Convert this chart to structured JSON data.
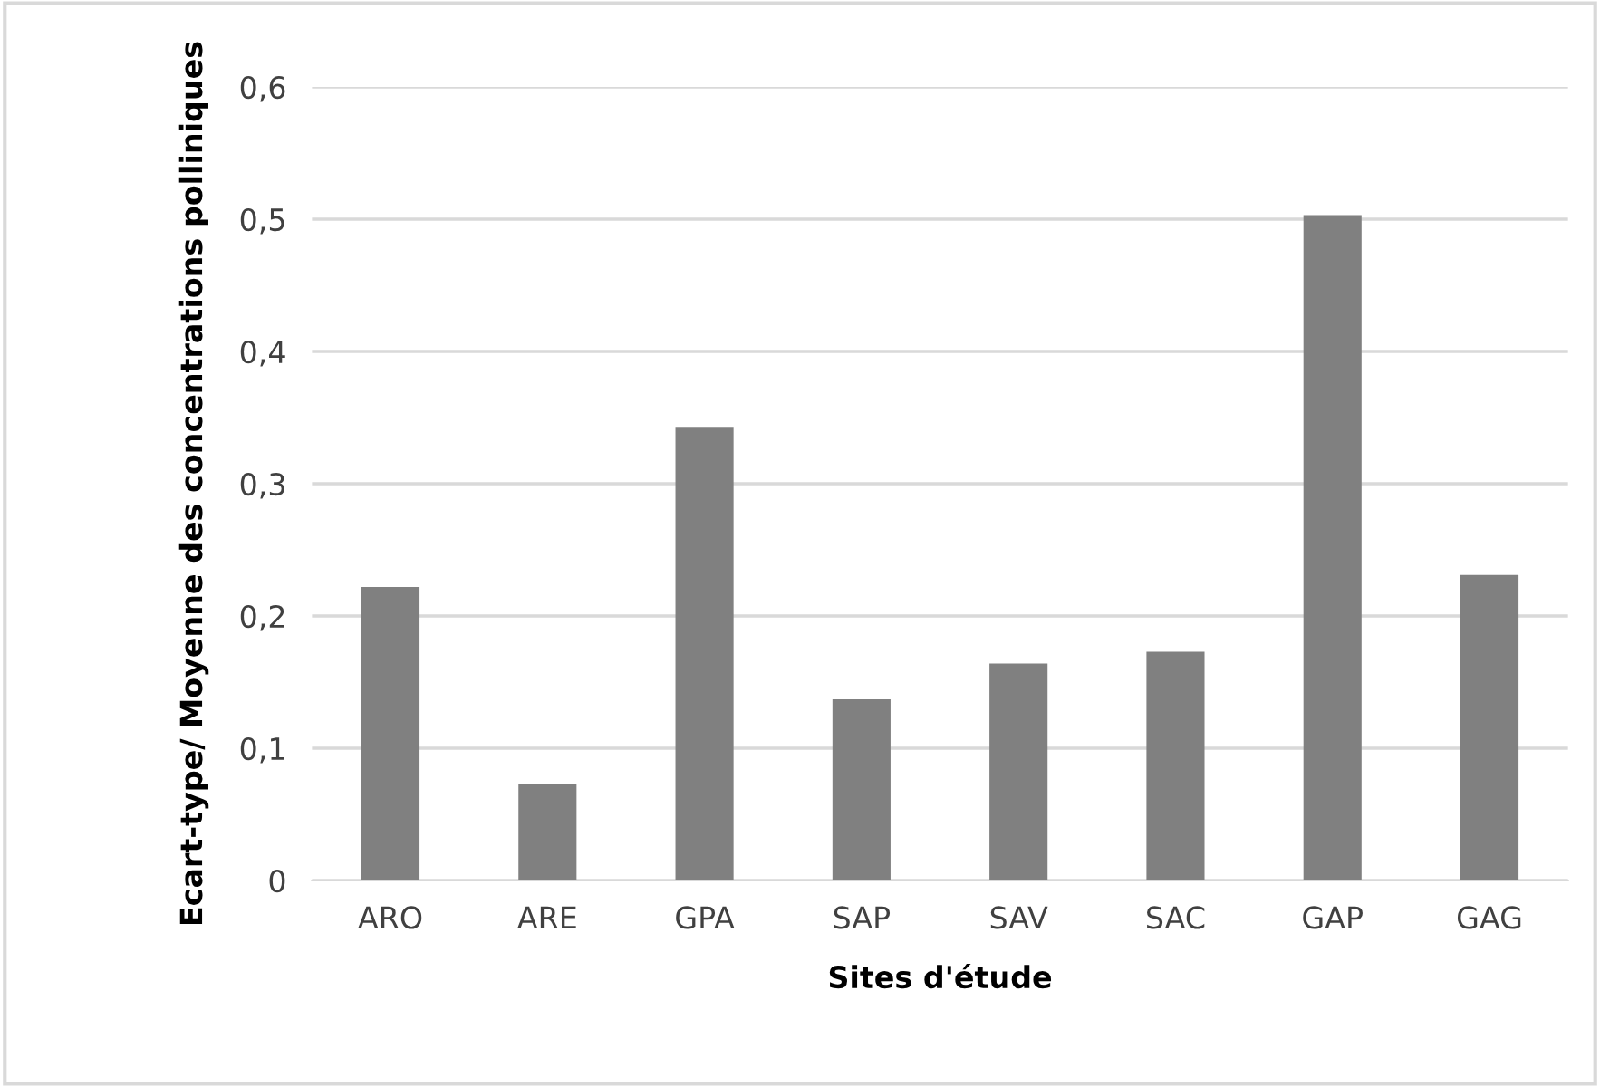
{
  "chart_data": {
    "type": "bar",
    "xlabel": "Sites d'étude",
    "ylabel": "Ecart-type/ Moyenne des concentrations polliniques",
    "categories": [
      "ARO",
      "ARE",
      "GPA",
      "SAP",
      "SAV",
      "SAC",
      "GAP",
      "GAG"
    ],
    "values": [
      0.222,
      0.073,
      0.343,
      0.137,
      0.164,
      0.173,
      0.503,
      0.231
    ],
    "color": "#808080",
    "ylim": [
      0,
      0.6
    ],
    "yticks": [
      {
        "value": 0,
        "label": "0"
      },
      {
        "value": 0.1,
        "label": "0,1"
      },
      {
        "value": 0.2,
        "label": "0,2"
      },
      {
        "value": 0.3,
        "label": "0,3"
      },
      {
        "value": 0.4,
        "label": "0,4"
      },
      {
        "value": 0.5,
        "label": "0,5"
      },
      {
        "value": 0.6,
        "label": "0,6"
      }
    ],
    "grid": "y"
  }
}
